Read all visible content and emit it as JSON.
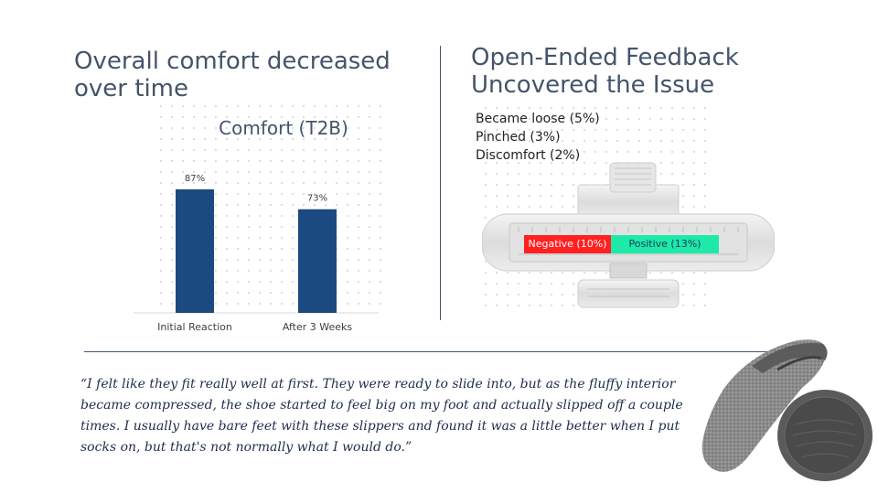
{
  "left": {
    "title": "Overall comfort decreased over time"
  },
  "right": {
    "title": "Open-Ended Feedback Uncovered the Issue",
    "mentions": [
      "Became loose (5%)",
      "Pinched (3%)",
      "Discomfort (2%)"
    ],
    "sentiment": {
      "negative_label": "Negative (10%)",
      "positive_label": "Positive (13%)",
      "negative_color": "#ff2020",
      "positive_color": "#1de9a8"
    }
  },
  "chart_data": {
    "type": "bar",
    "title": "Comfort (T2B)",
    "categories": [
      "Initial Reaction",
      "After 3 Weeks"
    ],
    "values": [
      87,
      73
    ],
    "value_labels": [
      "87%",
      "73%"
    ],
    "bar_color": "#1a4a80",
    "xlabel": "",
    "ylabel": "",
    "grid": false,
    "legend": "none"
  },
  "quote": "“I felt like they fit really well at first. They were ready to slide into, but as the fluffy interior became compressed, the shoe started to feel big on my foot and actually slipped off a couple times. I usually have bare feet with these slippers and found it was a little better when I put socks on, but that's not normally what I would do.”",
  "images": {
    "device": "foot-measuring-device",
    "product": "slipper-photo"
  }
}
